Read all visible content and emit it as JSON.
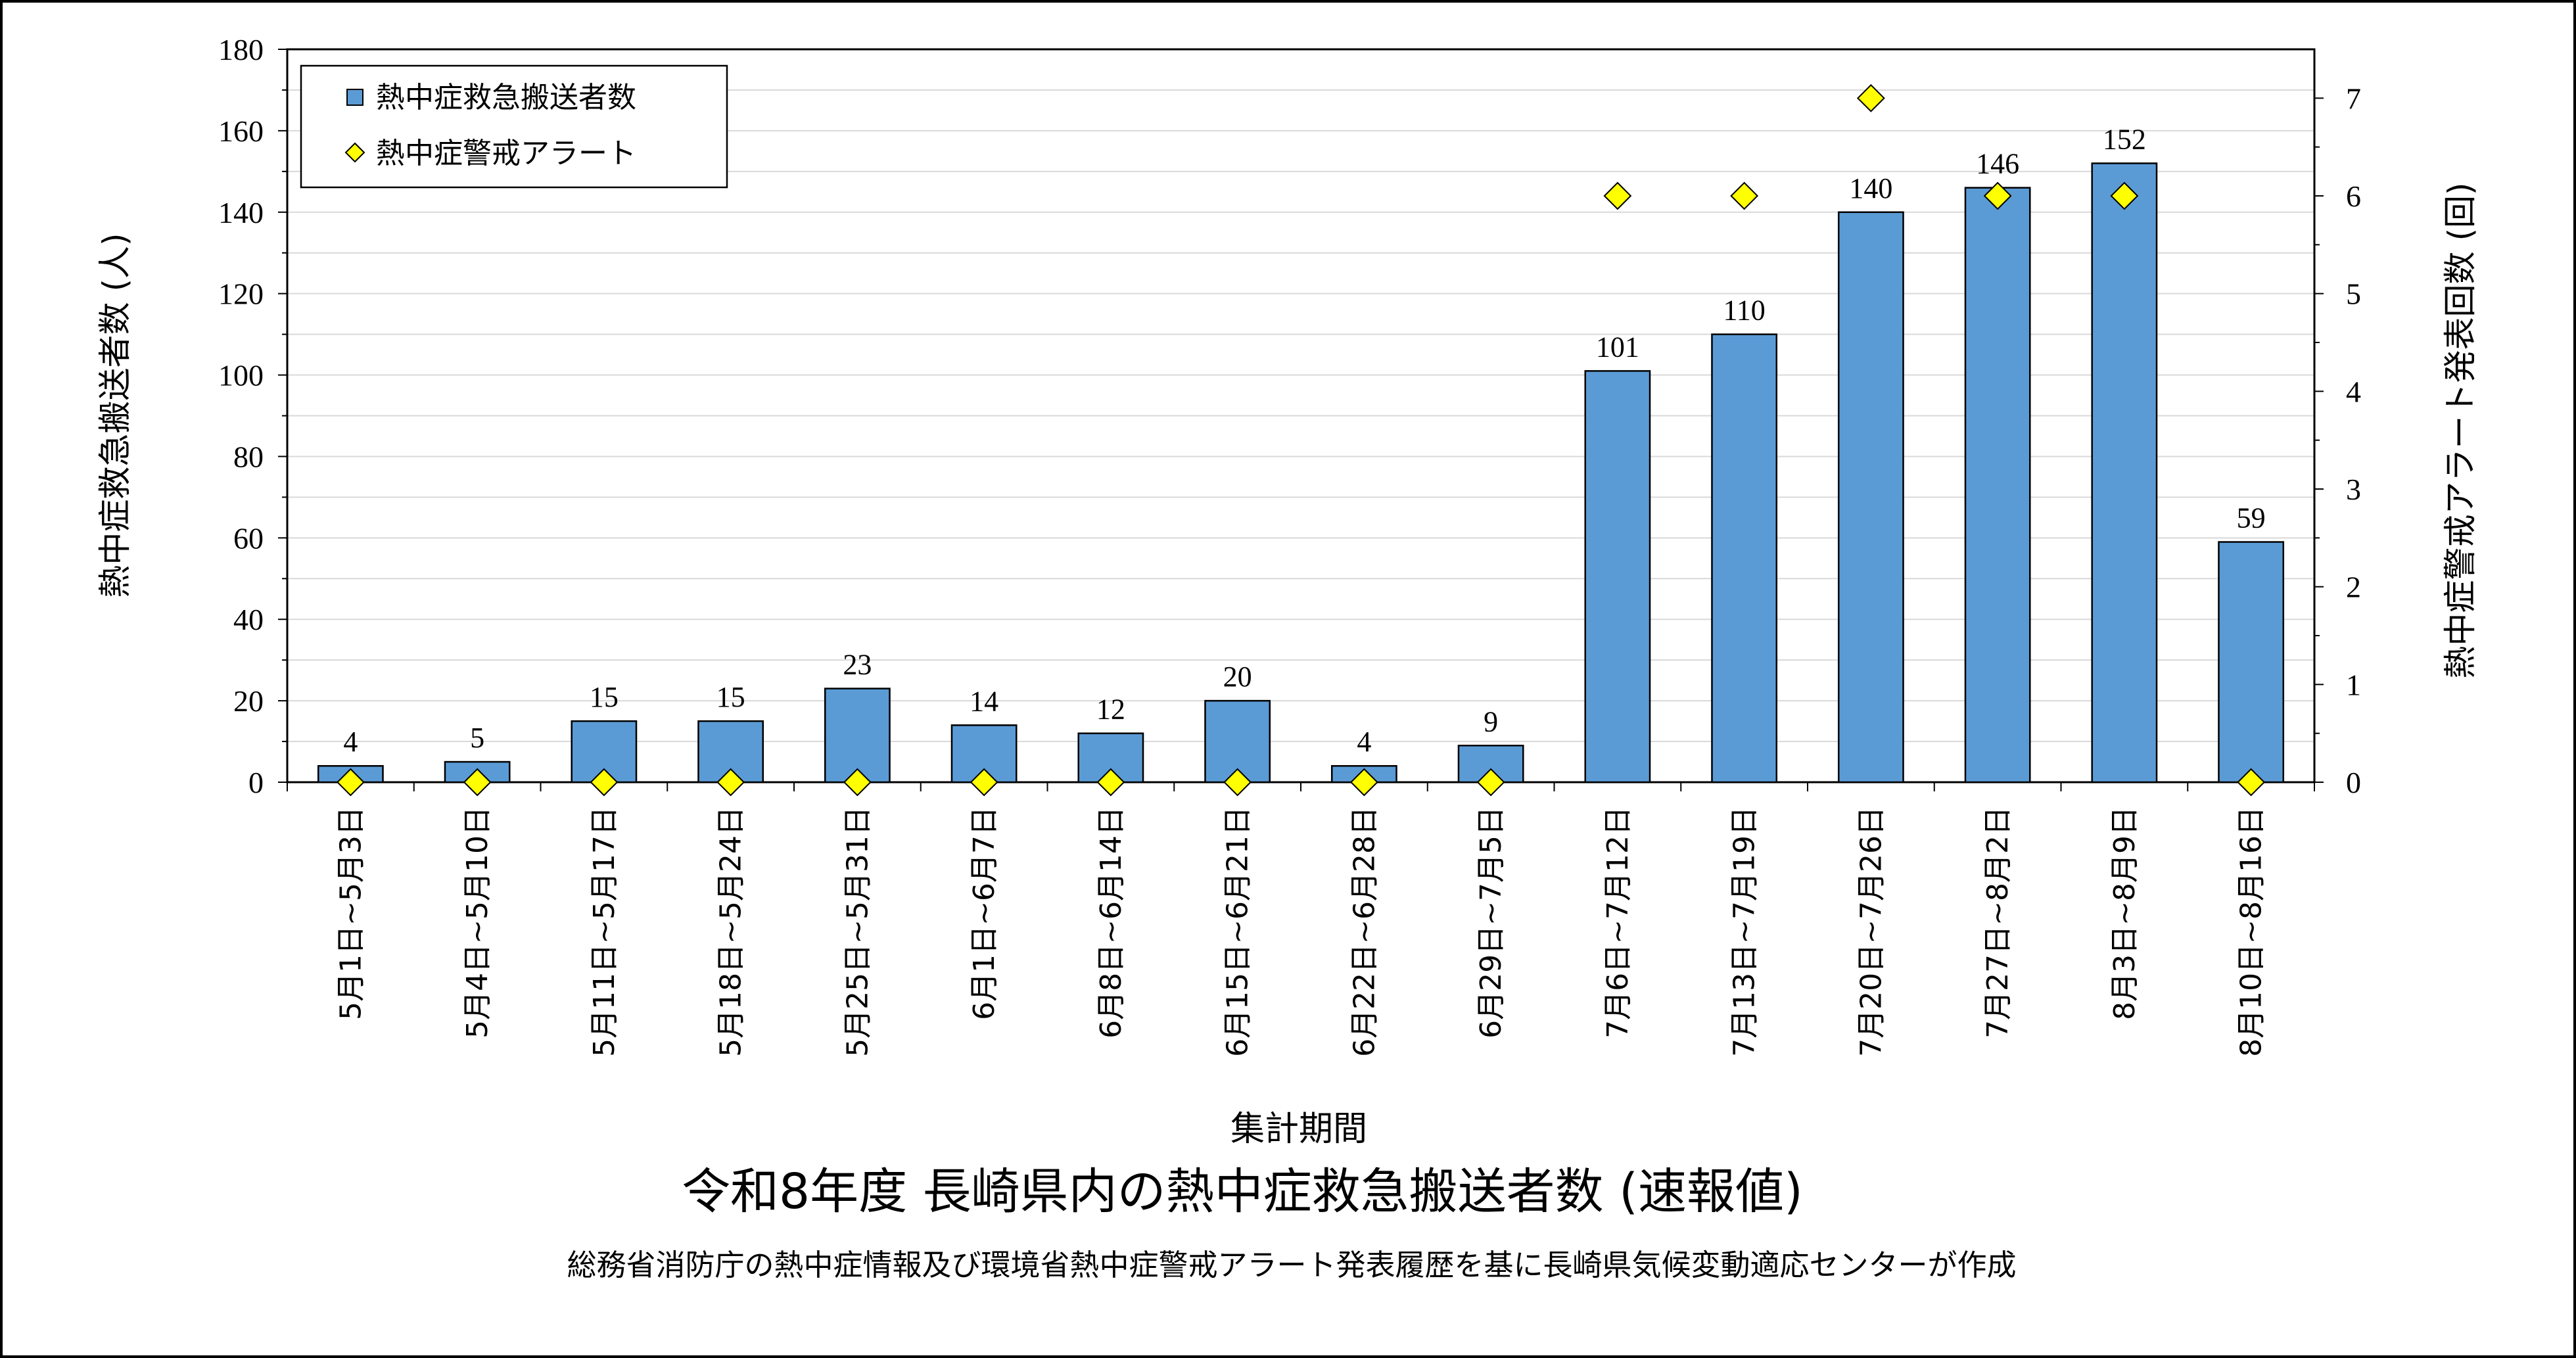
{
  "chart_data": {
    "type": "bar",
    "title": "令和8年度 長崎県内の熱中症救急搬送者数 (速報値)",
    "subtitle": "総務省消防庁の熱中症情報及び環境省熱中症警戒アラート発表履歴を基に長崎県気候変動適応センターが作成",
    "xlabel": "集計期間",
    "ylabel": "熱中症救急搬送者数 (人)",
    "y2label": "熱中症警戒アラート発表回数 (回)",
    "ylim": [
      0,
      180
    ],
    "y2lim": [
      0,
      7.5
    ],
    "yticks": [
      "0",
      "20",
      "40",
      "60",
      "80",
      "100",
      "120",
      "140",
      "160",
      "180"
    ],
    "y2ticks": [
      "0",
      "1",
      "2",
      "3",
      "4",
      "5",
      "6",
      "7"
    ],
    "grid": true,
    "legend_position": "top-left",
    "categories": [
      "5月1日~5月3日",
      "5月4日~5月10日",
      "5月11日~5月17日",
      "5月18日~5月24日",
      "5月25日~5月31日",
      "6月1日~6月7日",
      "6月8日~6月14日",
      "6月15日~6月21日",
      "6月22日~6月28日",
      "6月29日~7月5日",
      "7月6日~7月12日",
      "7月13日~7月19日",
      "7月20日~7月26日",
      "7月27日~8月2日",
      "8月3日~8月9日",
      "8月10日~8月16日"
    ],
    "series": [
      {
        "name": "熱中症救急搬送者数",
        "type": "bar",
        "axis": "left",
        "color": "#5B9BD5",
        "values": [
          4,
          5,
          15,
          15,
          23,
          14,
          12,
          20,
          4,
          9,
          101,
          110,
          140,
          146,
          152,
          59
        ],
        "labels": [
          "4",
          "5",
          "15",
          "15",
          "23",
          "14",
          "12",
          "20",
          "4",
          "9",
          "101",
          "110",
          "140",
          "146",
          "152",
          "59"
        ]
      },
      {
        "name": "熱中症警戒アラート",
        "type": "scatter",
        "marker": "diamond",
        "axis": "right",
        "color": "#FFFF00",
        "values": [
          0,
          0,
          0,
          0,
          0,
          0,
          0,
          0,
          0,
          0,
          6,
          6,
          7,
          6,
          6,
          0
        ]
      }
    ]
  }
}
